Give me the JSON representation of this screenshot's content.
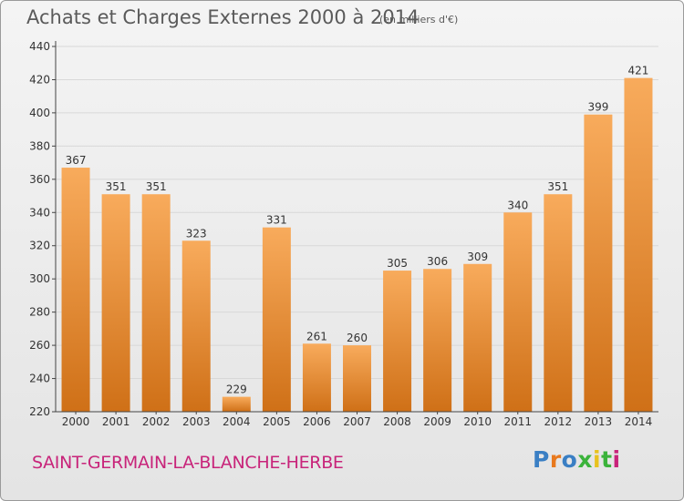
{
  "header": {
    "title": "Achats et Charges Externes 2000 à 2014",
    "subtitle": "(en milliers d'€)"
  },
  "commune": "SAINT-GERMAIN-LA-BLANCHE-HERBE",
  "logo": {
    "text": "Proxiti",
    "letter_colors": [
      "#3a7fc4",
      "#e8791e",
      "#3a7fc4",
      "#3bb33b",
      "#e8c21e",
      "#3bb33b",
      "#c8247a"
    ]
  },
  "colors": {
    "bar_light": "#f8ab5c",
    "bar_dark": "#cf7017",
    "grid": "#d8d8d8",
    "axis": "#444444",
    "text": "#333333"
  },
  "chart_data": {
    "type": "bar",
    "title": "Achats et Charges Externes 2000 à 2014",
    "subtitle": "(en milliers d'€)",
    "categories": [
      "2000",
      "2001",
      "2002",
      "2003",
      "2004",
      "2005",
      "2006",
      "2007",
      "2008",
      "2009",
      "2010",
      "2011",
      "2012",
      "2013",
      "2014"
    ],
    "values": [
      367,
      351,
      351,
      323,
      229,
      331,
      261,
      260,
      305,
      306,
      309,
      340,
      351,
      399,
      421
    ],
    "ylim": [
      220,
      440
    ],
    "yticks": [
      220,
      240,
      260,
      280,
      300,
      320,
      340,
      360,
      380,
      400,
      420,
      440
    ],
    "grid": true,
    "data_labels": true
  }
}
